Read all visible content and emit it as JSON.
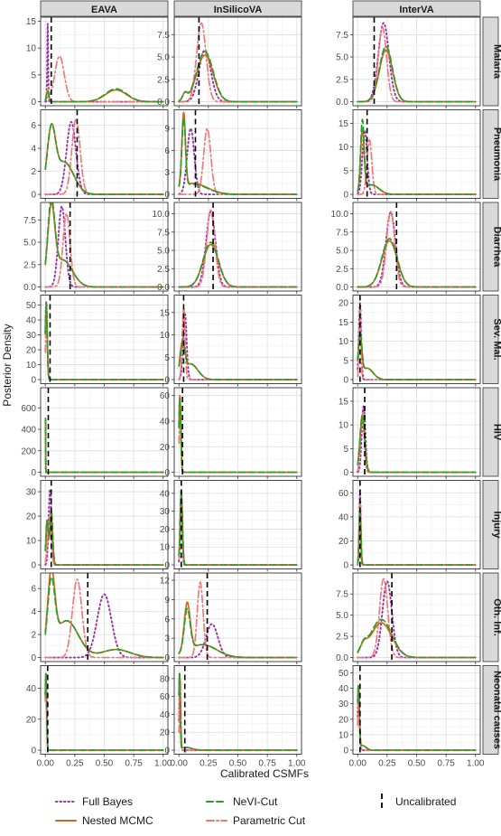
{
  "chart_data": {
    "type": "line",
    "xlabel": "Calibrated CSMFs",
    "ylabel": "Posterior Density",
    "xlim": [
      0,
      1
    ],
    "x_ticks": [
      "0.00",
      "0.25",
      "0.50",
      "0.75",
      "1.00"
    ],
    "grid": true,
    "legend_position": "bottom",
    "columns": [
      "EAVA",
      "InSilicoVA",
      "InterVA"
    ],
    "rows": [
      "Malaria",
      "Pneumonia",
      "Diarrhea",
      "Sev. Mal.",
      "HIV",
      "Injury",
      "Oth. Inf.",
      "Neonatal causes"
    ],
    "series": [
      {
        "key": "fb",
        "name": "Full Bayes",
        "color": "#9b30a8",
        "dash": "1.5,3"
      },
      {
        "key": "nm",
        "name": "Nested MCMC",
        "color": "#d2691e",
        "dash": ""
      },
      {
        "key": "nv",
        "name": "NeVI-Cut",
        "color": "#2a9d2a",
        "dash": "7,4"
      },
      {
        "key": "pc",
        "name": "Parametric Cut",
        "color": "#f07a7a",
        "dash": "8,3,2,3"
      },
      {
        "key": "un",
        "name": "Uncalibrated",
        "color": "#000000",
        "dash": "6,4"
      }
    ],
    "panels": [
      {
        "row": 0,
        "col": 0,
        "ylim": [
          0,
          15
        ],
        "yticks": [
          "0",
          "5",
          "10",
          "15"
        ],
        "uncal": 0.05,
        "fb": [
          [
            0.02,
            0.004,
            14.5
          ]
        ],
        "nm": [
          [
            0.02,
            0.01,
            2
          ],
          [
            0.6,
            0.09,
            2.2
          ]
        ],
        "nv": [
          [
            0.02,
            0.01,
            2
          ],
          [
            0.6,
            0.09,
            2.4
          ]
        ],
        "pc": [
          [
            0.02,
            0.01,
            2
          ],
          [
            0.12,
            0.04,
            8.5
          ]
        ]
      },
      {
        "row": 0,
        "col": 1,
        "ylim": [
          0,
          9
        ],
        "yticks": [
          "0.0",
          "2.5",
          "5.0",
          "7.5"
        ],
        "uncal": 0.17,
        "fb": [
          [
            0.22,
            0.05,
            5.8
          ]
        ],
        "nm": [
          [
            0.22,
            0.07,
            5.2
          ],
          [
            0.05,
            0.02,
            0.8
          ]
        ],
        "nv": [
          [
            0.22,
            0.07,
            5.6
          ],
          [
            0.05,
            0.02,
            0.8
          ]
        ],
        "pc": [
          [
            0.19,
            0.04,
            8.8
          ]
        ]
      },
      {
        "row": 0,
        "col": 2,
        "ylim": [
          0,
          9
        ],
        "yticks": [
          "0.0",
          "2.5",
          "5.0",
          "7.5"
        ],
        "uncal": 0.14,
        "fb": [
          [
            0.22,
            0.045,
            8.8
          ]
        ],
        "nm": [
          [
            0.24,
            0.055,
            5.8
          ]
        ],
        "nv": [
          [
            0.24,
            0.055,
            6.2
          ]
        ],
        "pc": [
          [
            0.21,
            0.035,
            8.3
          ]
        ]
      },
      {
        "row": 1,
        "col": 0,
        "ylim": [
          0,
          7
        ],
        "yticks": [
          "0",
          "2",
          "4",
          "6"
        ],
        "uncal": 0.27,
        "fb": [
          [
            0.22,
            0.04,
            6.3
          ]
        ],
        "nm": [
          [
            0.05,
            0.035,
            5.0
          ],
          [
            0.16,
            0.08,
            2.8
          ]
        ],
        "nv": [
          [
            0.05,
            0.035,
            5.0
          ],
          [
            0.16,
            0.08,
            2.8
          ]
        ],
        "pc": [
          [
            0.26,
            0.035,
            6.5
          ]
        ]
      },
      {
        "row": 1,
        "col": 1,
        "ylim": [
          0,
          11
        ],
        "yticks": [
          "0",
          "3",
          "6",
          "9"
        ],
        "uncal": 0.14,
        "fb": [
          [
            0.1,
            0.03,
            9.0
          ]
        ],
        "nm": [
          [
            0.04,
            0.015,
            10.0
          ],
          [
            0.12,
            0.12,
            1.5
          ]
        ],
        "nv": [
          [
            0.04,
            0.015,
            9.3
          ],
          [
            0.12,
            0.12,
            1.4
          ]
        ],
        "pc": [
          [
            0.24,
            0.03,
            9.0
          ]
        ]
      },
      {
        "row": 1,
        "col": 2,
        "ylim": [
          0,
          17
        ],
        "yticks": [
          "0",
          "5",
          "10",
          "15"
        ],
        "uncal": 0.08,
        "fb": [
          [
            0.06,
            0.02,
            13.5
          ]
        ],
        "nm": [
          [
            0.04,
            0.015,
            13.0
          ],
          [
            0.12,
            0.06,
            2.0
          ]
        ],
        "nv": [
          [
            0.04,
            0.015,
            15.0
          ],
          [
            0.12,
            0.06,
            2.0
          ]
        ],
        "pc": [
          [
            0.1,
            0.02,
            11.5
          ]
        ]
      },
      {
        "row": 2,
        "col": 0,
        "ylim": [
          0,
          9
        ],
        "yticks": [
          "0.0",
          "2.5",
          "5.0",
          "7.5"
        ],
        "uncal": 0.21,
        "fb": [
          [
            0.14,
            0.03,
            9.0
          ]
        ],
        "nm": [
          [
            0.05,
            0.03,
            8.0
          ],
          [
            0.15,
            0.08,
            3.0
          ]
        ],
        "nv": [
          [
            0.05,
            0.03,
            8.5
          ],
          [
            0.15,
            0.08,
            3.0
          ]
        ],
        "pc": [
          [
            0.18,
            0.03,
            8.2
          ]
        ]
      },
      {
        "row": 2,
        "col": 1,
        "ylim": [
          0,
          11
        ],
        "yticks": [
          "0.0",
          "2.5",
          "5.0",
          "7.5",
          "10.0"
        ],
        "uncal": 0.29,
        "fb": [
          [
            0.27,
            0.04,
            10.3
          ]
        ],
        "nm": [
          [
            0.27,
            0.065,
            5.8
          ]
        ],
        "nv": [
          [
            0.27,
            0.065,
            6.1
          ]
        ],
        "pc": [
          [
            0.27,
            0.035,
            10.5
          ]
        ]
      },
      {
        "row": 2,
        "col": 2,
        "ylim": [
          0,
          11
        ],
        "yticks": [
          "0.0",
          "2.5",
          "5.0",
          "7.5",
          "10.0"
        ],
        "uncal": 0.33,
        "fb": [
          [
            0.28,
            0.04,
            10.2
          ]
        ],
        "nm": [
          [
            0.27,
            0.065,
            6.3
          ]
        ],
        "nv": [
          [
            0.27,
            0.065,
            6.6
          ]
        ],
        "pc": [
          [
            0.28,
            0.035,
            10.3
          ]
        ]
      },
      {
        "row": 3,
        "col": 0,
        "ylim": [
          0,
          54
        ],
        "yticks": [
          "0",
          "10",
          "20",
          "30",
          "40",
          "50"
        ],
        "uncal": 0.04,
        "fb": [
          [
            0.008,
            0.008,
            52
          ]
        ],
        "nm": [
          [
            0.008,
            0.008,
            50
          ]
        ],
        "nv": [
          [
            0.008,
            0.008,
            52
          ]
        ],
        "pc": [
          [
            0.01,
            0.008,
            40
          ]
        ]
      },
      {
        "row": 3,
        "col": 1,
        "ylim": [
          0,
          18
        ],
        "yticks": [
          "0",
          "5",
          "10",
          "15"
        ],
        "uncal": 0.04,
        "fb": [
          [
            0.05,
            0.015,
            15.0
          ]
        ],
        "nm": [
          [
            0.03,
            0.02,
            7.0
          ],
          [
            0.1,
            0.06,
            3.5
          ]
        ],
        "nv": [
          [
            0.03,
            0.02,
            6.5
          ],
          [
            0.1,
            0.06,
            3.5
          ]
        ],
        "pc": [
          [
            0.04,
            0.012,
            16.0
          ]
        ]
      },
      {
        "row": 3,
        "col": 2,
        "ylim": [
          0,
          21
        ],
        "yticks": [
          "0",
          "5",
          "10",
          "15",
          "20"
        ],
        "uncal": 0.02,
        "fb": [
          [
            0.02,
            0.01,
            20.0
          ]
        ],
        "nm": [
          [
            0.02,
            0.015,
            10.0
          ],
          [
            0.08,
            0.05,
            3.0
          ]
        ],
        "nv": [
          [
            0.02,
            0.015,
            11.0
          ],
          [
            0.08,
            0.05,
            3.0
          ]
        ],
        "pc": [
          [
            0.02,
            0.008,
            19.0
          ]
        ]
      },
      {
        "row": 4,
        "col": 0,
        "ylim": [
          0,
          750
        ],
        "yticks": [
          "0",
          "200",
          "400",
          "600"
        ],
        "uncal": 0.025,
        "fb": [
          [
            0.001,
            0.0012,
            600
          ]
        ],
        "nm": [
          [
            0.001,
            0.0012,
            700
          ]
        ],
        "nv": [
          [
            0.001,
            0.0012,
            710
          ]
        ],
        "pc": [
          [
            0.001,
            0.0012,
            650
          ]
        ]
      },
      {
        "row": 4,
        "col": 1,
        "ylim": [
          0,
          63
        ],
        "yticks": [
          "0",
          "20",
          "40",
          "60"
        ],
        "uncal": 0.03,
        "fb": [
          [
            0.008,
            0.008,
            58
          ]
        ],
        "nm": [
          [
            0.008,
            0.008,
            60
          ]
        ],
        "nv": [
          [
            0.008,
            0.008,
            58
          ]
        ],
        "pc": [
          [
            0.01,
            0.008,
            50
          ]
        ]
      },
      {
        "row": 4,
        "col": 2,
        "ylim": [
          0,
          17
        ],
        "yticks": [
          "0",
          "5",
          "10",
          "15"
        ],
        "uncal": 0.06,
        "fb": [
          [
            0.05,
            0.015,
            14.0
          ]
        ],
        "nm": [
          [
            0.04,
            0.02,
            12.0
          ]
        ],
        "nv": [
          [
            0.04,
            0.02,
            12.0
          ]
        ],
        "pc": [
          [
            0.04,
            0.015,
            12.5
          ]
        ]
      },
      {
        "row": 5,
        "col": 0,
        "ylim": [
          0,
          33
        ],
        "yticks": [
          "0",
          "10",
          "20",
          "30"
        ],
        "uncal": 0.05,
        "fb": [
          [
            0.04,
            0.012,
            31.0
          ]
        ],
        "nm": [
          [
            0.015,
            0.01,
            18.0
          ],
          [
            0.05,
            0.012,
            20.0
          ]
        ],
        "nv": [
          [
            0.015,
            0.01,
            18.0
          ],
          [
            0.05,
            0.012,
            23.0
          ]
        ],
        "pc": [
          [
            0.035,
            0.015,
            20.0
          ]
        ]
      },
      {
        "row": 5,
        "col": 1,
        "ylim": [
          0,
          45
        ],
        "yticks": [
          "0",
          "10",
          "20",
          "30",
          "40"
        ],
        "uncal": 0.02,
        "fb": [
          [
            0.02,
            0.008,
            42.0
          ]
        ],
        "nm": [
          [
            0.02,
            0.01,
            38.0
          ]
        ],
        "nv": [
          [
            0.02,
            0.01,
            40.0
          ]
        ],
        "pc": [
          [
            0.02,
            0.009,
            42.0
          ]
        ]
      },
      {
        "row": 5,
        "col": 2,
        "ylim": [
          0,
          67
        ],
        "yticks": [
          "0",
          "20",
          "40",
          "60"
        ],
        "uncal": 0.02,
        "fb": [
          [
            0.02,
            0.006,
            62.0
          ]
        ],
        "nm": [
          [
            0.02,
            0.008,
            42.0
          ]
        ],
        "nv": [
          [
            0.02,
            0.008,
            45.0
          ]
        ],
        "pc": [
          [
            0.02,
            0.007,
            55.0
          ]
        ]
      },
      {
        "row": 6,
        "col": 0,
        "ylim": [
          0,
          7
        ],
        "yticks": [
          "0",
          "2",
          "4",
          "6"
        ],
        "uncal": 0.36,
        "fb": [
          [
            0.5,
            0.06,
            5.5
          ]
        ],
        "nm": [
          [
            0.05,
            0.03,
            6.4
          ],
          [
            0.18,
            0.1,
            3.2
          ],
          [
            0.6,
            0.12,
            0.7
          ]
        ],
        "nv": [
          [
            0.05,
            0.03,
            5.6
          ],
          [
            0.18,
            0.1,
            3.2
          ],
          [
            0.6,
            0.12,
            0.7
          ]
        ],
        "pc": [
          [
            0.27,
            0.04,
            6.8
          ]
        ]
      },
      {
        "row": 6,
        "col": 1,
        "ylim": [
          0,
          12.5
        ],
        "yticks": [
          "0",
          "3",
          "6",
          "9",
          "12"
        ],
        "uncal": 0.24,
        "fb": [
          [
            0.28,
            0.05,
            5.2
          ]
        ],
        "nm": [
          [
            0.07,
            0.025,
            7.5
          ],
          [
            0.2,
            0.12,
            2.0
          ]
        ],
        "nv": [
          [
            0.07,
            0.025,
            6.5
          ],
          [
            0.2,
            0.12,
            2.0
          ]
        ],
        "pc": [
          [
            0.18,
            0.025,
            11.7
          ]
        ]
      },
      {
        "row": 6,
        "col": 2,
        "ylim": [
          0,
          9.5
        ],
        "yticks": [
          "0.0",
          "2.5",
          "5.0",
          "7.5"
        ],
        "uncal": 0.29,
        "fb": [
          [
            0.25,
            0.04,
            9.0
          ]
        ],
        "nm": [
          [
            0.2,
            0.09,
            4.1
          ],
          [
            0.05,
            0.03,
            1.0
          ]
        ],
        "nv": [
          [
            0.2,
            0.09,
            4.5
          ],
          [
            0.05,
            0.03,
            1.0
          ]
        ],
        "pc": [
          [
            0.22,
            0.035,
            9.3
          ]
        ]
      },
      {
        "row": 7,
        "col": 0,
        "ylim": [
          0,
          52
        ],
        "yticks": [
          "0",
          "20",
          "40"
        ],
        "uncal": 0.02,
        "fb": [
          [
            0.005,
            0.006,
            48
          ]
        ],
        "nm": [
          [
            0.005,
            0.006,
            50
          ]
        ],
        "nv": [
          [
            0.005,
            0.006,
            50
          ]
        ],
        "pc": [
          [
            0.005,
            0.006,
            45
          ]
        ]
      },
      {
        "row": 7,
        "col": 1,
        "ylim": [
          0,
          90
        ],
        "yticks": [
          "0",
          "20",
          "40",
          "60",
          "80"
        ],
        "uncal": 0.05,
        "fb": [
          [
            0.008,
            0.006,
            80
          ]
        ],
        "nm": [
          [
            0.005,
            0.006,
            85
          ],
          [
            0.06,
            0.05,
            3.0
          ]
        ],
        "nv": [
          [
            0.005,
            0.006,
            85
          ],
          [
            0.06,
            0.05,
            3.0
          ]
        ],
        "pc": [
          [
            0.01,
            0.006,
            80
          ]
        ]
      },
      {
        "row": 7,
        "col": 2,
        "ylim": [
          0,
          52
        ],
        "yticks": [
          "0",
          "10",
          "20",
          "30",
          "40",
          "50"
        ],
        "uncal": 0.02,
        "fb": [
          [
            0.008,
            0.007,
            42
          ]
        ],
        "nm": [
          [
            0.006,
            0.008,
            40
          ],
          [
            0.04,
            0.03,
            3.0
          ]
        ],
        "nv": [
          [
            0.006,
            0.008,
            40
          ],
          [
            0.04,
            0.03,
            3.0
          ]
        ],
        "pc": [
          [
            0.01,
            0.008,
            35
          ]
        ]
      }
    ]
  }
}
